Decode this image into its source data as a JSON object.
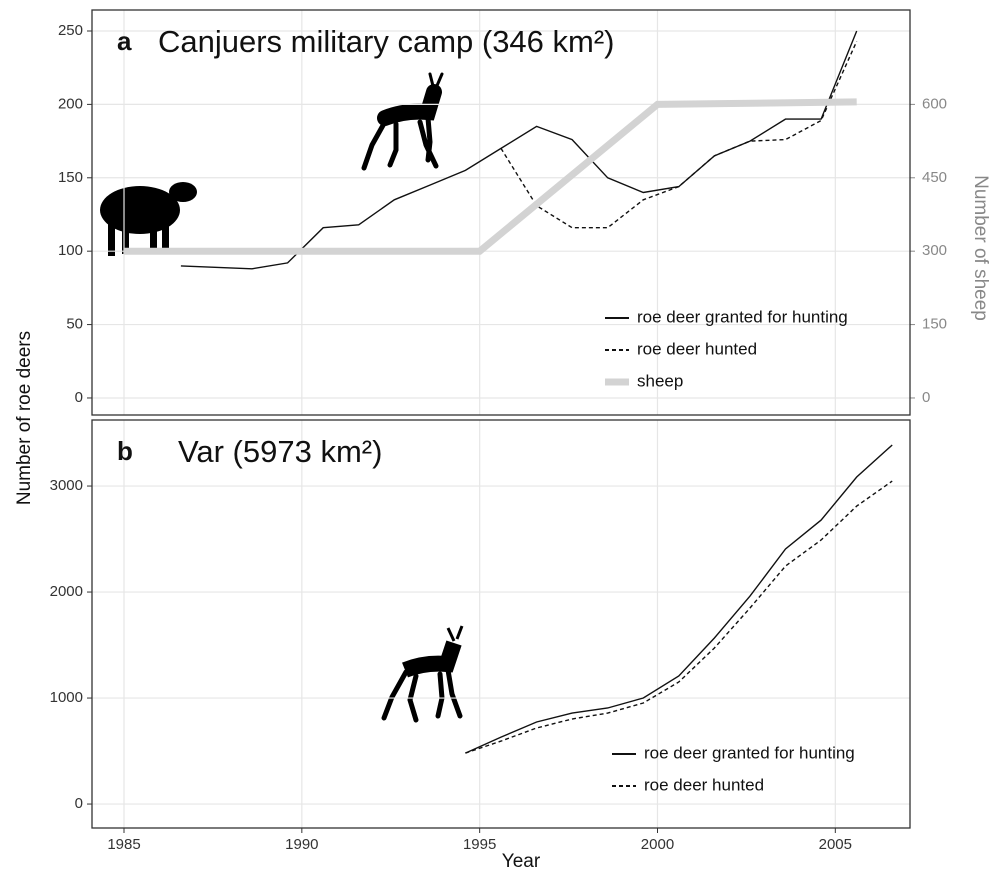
{
  "chart_data": [
    {
      "type": "line",
      "label": "a",
      "title": "Canjuers military camp (346 km²)",
      "y_label": "Number of roe deers",
      "y2_label": "Number of sheep",
      "xlim": [
        1984.1,
        2007.1
      ],
      "ylim": [
        -11.6,
        264.3
      ],
      "yticks": [
        0,
        50,
        100,
        150,
        200,
        250
      ],
      "y2lim": [
        -34.8,
        792.9
      ],
      "y2ticks": [
        0,
        150,
        300,
        450,
        600
      ],
      "grid": true,
      "legend": "lower right",
      "x": [
        1986.6,
        1988.6,
        1989.6,
        1990.6,
        1991.6,
        1992.6,
        1993.6,
        1994.6,
        1995.6,
        1996.6,
        1997.6,
        1998.6,
        1999.6,
        2000.6,
        2001.6,
        2002.6,
        2003.6,
        2004.6,
        2005.6
      ],
      "series": [
        {
          "name": "roe deer granted for hunting",
          "color": "#111111",
          "dash": false,
          "values": [
            90,
            88,
            92,
            116,
            118,
            135,
            145,
            155,
            170,
            185,
            176,
            150,
            140,
            144,
            165,
            175,
            190,
            190,
            250
          ]
        },
        {
          "name": "roe deer hunted",
          "color": "#111111",
          "dash": true,
          "values": [
            null,
            null,
            null,
            null,
            null,
            null,
            null,
            null,
            170,
            131,
            116,
            116,
            135,
            144,
            165,
            175,
            176,
            189,
            243
          ]
        },
        {
          "name": "sheep",
          "color": "#d3d3d3",
          "dash": false,
          "axis": "y2",
          "x": [
            1985,
            1995,
            2000,
            2005.6
          ],
          "values": [
            300,
            300,
            600,
            605
          ]
        }
      ]
    },
    {
      "type": "line",
      "label": "b",
      "title": "Var (5973 km²)",
      "x_label": "Year",
      "xlim": [
        1984.1,
        2007.1
      ],
      "xticks": [
        1985,
        1990,
        1995,
        2000,
        2005
      ],
      "ylim": [
        -226,
        3623
      ],
      "yticks": [
        0,
        1000,
        2000,
        3000
      ],
      "grid": true,
      "legend": "lower right",
      "x": [
        1994.6,
        1995.6,
        1996.6,
        1997.6,
        1998.6,
        1999.6,
        2000.6,
        2001.6,
        2002.6,
        2003.6,
        2004.6,
        2005.6,
        2006.6
      ],
      "series": [
        {
          "name": "roe deer granted for hunting",
          "color": "#111111",
          "dash": false,
          "values": [
            481,
            632,
            774,
            858,
            906,
            1000,
            1208,
            1566,
            1962,
            2406,
            2679,
            3085,
            3387
          ]
        },
        {
          "name": "roe deer hunted",
          "color": "#111111",
          "dash": true,
          "values": [
            481,
            594,
            717,
            802,
            858,
            953,
            1151,
            1472,
            1849,
            2245,
            2491,
            2811,
            3047
          ]
        }
      ]
    }
  ]
}
